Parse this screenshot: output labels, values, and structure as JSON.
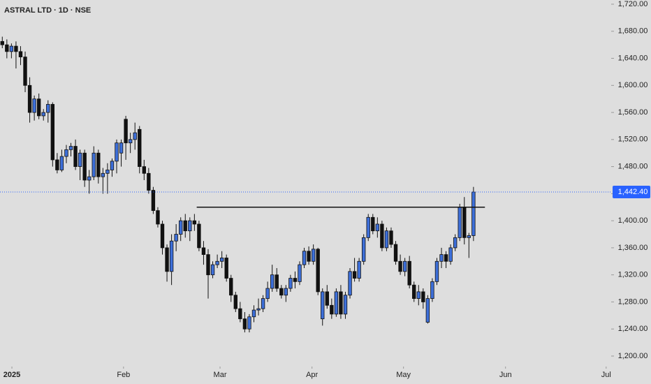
{
  "chart_data": {
    "type": "candlestick",
    "title": "ASTRAL LTD · 1D · NSE",
    "x": [
      0,
      1,
      2,
      3,
      4,
      5,
      6,
      7,
      8,
      9,
      10,
      11,
      12,
      13,
      14,
      15,
      16,
      17,
      18,
      19,
      20,
      21,
      22,
      23,
      24,
      25,
      26,
      27,
      28,
      29,
      30,
      31,
      32,
      33,
      34,
      35,
      36,
      37,
      38,
      39,
      40,
      41,
      42,
      43,
      44,
      45,
      46,
      47,
      48,
      49,
      50,
      51,
      52,
      53,
      54,
      55,
      56,
      57,
      58,
      59,
      60,
      61,
      62,
      63,
      64,
      65,
      66,
      67,
      68,
      69,
      70,
      71,
      72,
      73,
      74,
      75,
      76,
      77,
      78,
      79,
      80,
      81,
      82,
      83,
      84,
      85,
      86,
      87,
      88,
      89,
      90,
      91,
      92,
      93,
      94,
      95,
      96,
      97,
      98,
      99,
      100,
      101,
      102,
      103
    ],
    "open": [
      1665,
      1660,
      1650,
      1658,
      1650,
      1642,
      1600,
      1560,
      1580,
      1555,
      1560,
      1572,
      1490,
      1475,
      1495,
      1505,
      1510,
      1480,
      1500,
      1460,
      1465,
      1500,
      1465,
      1470,
      1475,
      1488,
      1500,
      1550,
      1515,
      1520,
      1535,
      1480,
      1470,
      1445,
      1415,
      1395,
      1360,
      1325,
      1370,
      1380,
      1400,
      1385,
      1400,
      1395,
      1360,
      1350,
      1320,
      1335,
      1340,
      1345,
      1315,
      1290,
      1270,
      1255,
      1240,
      1258,
      1268,
      1270,
      1285,
      1300,
      1320,
      1300,
      1290,
      1300,
      1315,
      1310,
      1335,
      1355,
      1340,
      1358,
      1255,
      1295,
      1275,
      1262,
      1295,
      1262,
      1290,
      1325,
      1315,
      1340,
      1375,
      1405,
      1385,
      1395,
      1360,
      1385,
      1365,
      1340,
      1325,
      1340,
      1305,
      1285,
      1295,
      1250,
      1285,
      1310,
      1340,
      1350,
      1340,
      1360,
      1375,
      1420,
      1375,
      1378
    ],
    "high": [
      1672,
      1668,
      1662,
      1665,
      1658,
      1650,
      1612,
      1585,
      1588,
      1565,
      1578,
      1575,
      1500,
      1505,
      1512,
      1515,
      1520,
      1505,
      1505,
      1475,
      1510,
      1505,
      1478,
      1485,
      1492,
      1520,
      1520,
      1555,
      1530,
      1545,
      1540,
      1490,
      1478,
      1450,
      1420,
      1400,
      1365,
      1380,
      1395,
      1405,
      1410,
      1405,
      1410,
      1400,
      1370,
      1358,
      1340,
      1350,
      1355,
      1350,
      1320,
      1295,
      1280,
      1265,
      1262,
      1275,
      1285,
      1290,
      1310,
      1335,
      1330,
      1305,
      1305,
      1320,
      1325,
      1340,
      1360,
      1362,
      1365,
      1360,
      1300,
      1305,
      1285,
      1300,
      1305,
      1295,
      1330,
      1345,
      1345,
      1380,
      1410,
      1410,
      1405,
      1400,
      1390,
      1390,
      1370,
      1350,
      1345,
      1348,
      1310,
      1305,
      1300,
      1290,
      1315,
      1345,
      1360,
      1355,
      1365,
      1380,
      1425,
      1435,
      1382,
      1450
    ],
    "low": [
      1655,
      1640,
      1640,
      1625,
      1630,
      1590,
      1545,
      1548,
      1550,
      1548,
      1545,
      1480,
      1470,
      1472,
      1485,
      1495,
      1475,
      1460,
      1450,
      1440,
      1460,
      1455,
      1440,
      1440,
      1465,
      1470,
      1480,
      1490,
      1500,
      1505,
      1470,
      1460,
      1440,
      1410,
      1390,
      1350,
      1310,
      1305,
      1355,
      1370,
      1375,
      1370,
      1385,
      1355,
      1335,
      1285,
      1315,
      1330,
      1330,
      1310,
      1280,
      1265,
      1250,
      1235,
      1235,
      1250,
      1260,
      1265,
      1280,
      1295,
      1295,
      1285,
      1280,
      1295,
      1300,
      1305,
      1330,
      1335,
      1335,
      1290,
      1245,
      1270,
      1255,
      1258,
      1255,
      1255,
      1285,
      1310,
      1310,
      1335,
      1370,
      1380,
      1375,
      1355,
      1355,
      1360,
      1335,
      1320,
      1318,
      1300,
      1280,
      1275,
      1270,
      1248,
      1280,
      1305,
      1330,
      1330,
      1335,
      1355,
      1370,
      1365,
      1345,
      1370
    ],
    "close": [
      1660,
      1650,
      1658,
      1650,
      1642,
      1600,
      1560,
      1580,
      1555,
      1560,
      1572,
      1490,
      1475,
      1495,
      1505,
      1510,
      1480,
      1500,
      1460,
      1465,
      1500,
      1465,
      1470,
      1475,
      1488,
      1515,
      1515,
      1515,
      1520,
      1530,
      1480,
      1470,
      1445,
      1415,
      1395,
      1360,
      1325,
      1370,
      1380,
      1400,
      1385,
      1400,
      1395,
      1360,
      1350,
      1320,
      1335,
      1340,
      1345,
      1315,
      1290,
      1270,
      1255,
      1240,
      1258,
      1268,
      1270,
      1285,
      1300,
      1320,
      1300,
      1290,
      1300,
      1315,
      1310,
      1335,
      1355,
      1340,
      1358,
      1295,
      1295,
      1275,
      1262,
      1295,
      1262,
      1290,
      1325,
      1315,
      1340,
      1375,
      1405,
      1385,
      1395,
      1360,
      1385,
      1365,
      1340,
      1325,
      1340,
      1305,
      1285,
      1295,
      1280,
      1285,
      1310,
      1340,
      1350,
      1340,
      1360,
      1375,
      1420,
      1375,
      1378,
      1442.4
    ],
    "up_color": "#3d6fd9",
    "down_color": "#111111",
    "ylim": [
      1184.5,
      1726.2
    ],
    "yticks": [
      {
        "value": 1720,
        "label": "1,720.00"
      },
      {
        "value": 1680,
        "label": "1,680.00"
      },
      {
        "value": 1640,
        "label": "1,640.00"
      },
      {
        "value": 1600,
        "label": "1,600.00"
      },
      {
        "value": 1560,
        "label": "1,560.00"
      },
      {
        "value": 1520,
        "label": "1,520.00"
      },
      {
        "value": 1480,
        "label": "1,480.00"
      },
      {
        "value": 1440,
        "label": "1,440.00"
      },
      {
        "value": 1400,
        "label": "1,400.00"
      },
      {
        "value": 1360,
        "label": "1,360.00"
      },
      {
        "value": 1320,
        "label": "1,320.00"
      },
      {
        "value": 1280,
        "label": "1,280.00"
      },
      {
        "value": 1240,
        "label": "1,240.00"
      },
      {
        "value": 1200,
        "label": "1,200.00"
      }
    ],
    "xlim": [
      -0.5,
      133.1
    ],
    "xticks": [
      {
        "value": 2.1,
        "label": "2025"
      },
      {
        "value": 26.5,
        "label": "Feb"
      },
      {
        "value": 47.6,
        "label": "Mar"
      },
      {
        "value": 67.7,
        "label": "Apr"
      },
      {
        "value": 87.7,
        "label": "May"
      },
      {
        "value": 110,
        "label": "Jun"
      },
      {
        "value": 132,
        "label": "Jul"
      }
    ],
    "last_price": {
      "value": 1442.4,
      "label": "1,442.40",
      "color": "#2962ff"
    },
    "level_line": {
      "y": 1420,
      "x": [
        42.5,
        105.5
      ]
    },
    "grid": false
  }
}
